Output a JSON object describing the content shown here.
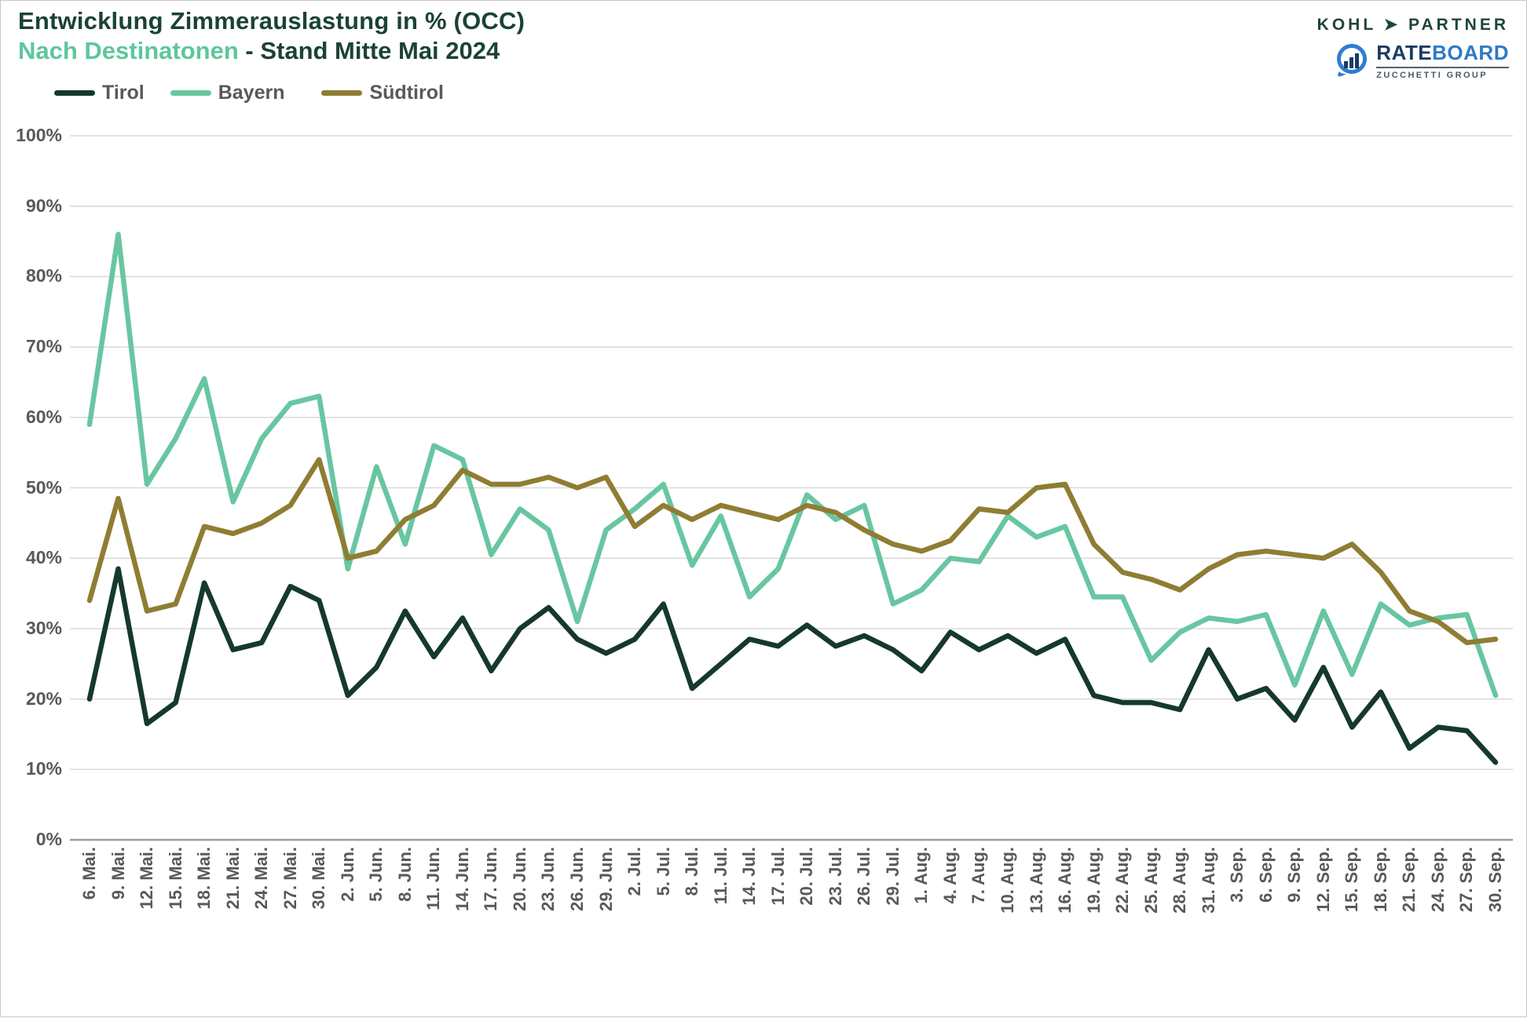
{
  "header": {
    "title": "Entwicklung Zimmerauslastung in % (OCC)",
    "subtitle_highlight": "Nach Destinatonen",
    "subtitle_rest": " - Stand Mitte Mai 2024"
  },
  "branding": {
    "kohl_partner": "KOHL ➤ PARTNER",
    "rateboard_rate": "RATE",
    "rateboard_board": "BOARD",
    "zucchetti": "ZUCCHETTI GROUP"
  },
  "colors": {
    "title": "#1b4237",
    "subtitle_highlight": "#5ec69c",
    "axis_text": "#595959",
    "gridline": "#d9d9d9",
    "axis_line": "#9e9e9e",
    "tirol": "#15392c",
    "bayern": "#68c6a1",
    "suedtirol": "#8f7d33"
  },
  "chart_data": {
    "type": "line",
    "title": "Entwicklung Zimmerauslastung in % (OCC)",
    "subtitle": "Nach Destinatonen - Stand Mitte Mai 2024",
    "ylim": [
      0,
      100
    ],
    "grid": true,
    "legend_position": "top-left",
    "y_tick_labels": [
      "0%",
      "10%",
      "20%",
      "30%",
      "40%",
      "50%",
      "60%",
      "70%",
      "80%",
      "90%",
      "100%"
    ],
    "x_labels": [
      "6. Mai.",
      "9. Mai.",
      "12. Mai.",
      "15. Mai.",
      "18. Mai.",
      "21. Mai.",
      "24. Mai.",
      "27. Mai.",
      "30. Mai.",
      "2. Jun.",
      "5. Jun.",
      "8. Jun.",
      "11. Jun.",
      "14. Jun.",
      "17. Jun.",
      "20. Jun.",
      "23. Jun.",
      "26. Jun.",
      "29. Jun.",
      "2. Jul.",
      "5. Jul.",
      "8. Jul.",
      "11. Jul.",
      "14. Jul.",
      "17. Jul.",
      "20. Jul.",
      "23. Jul.",
      "26. Jul.",
      "29. Jul.",
      "1. Aug.",
      "4. Aug.",
      "7. Aug.",
      "10. Aug.",
      "13. Aug.",
      "16. Aug.",
      "19. Aug.",
      "22. Aug.",
      "25. Aug.",
      "28. Aug.",
      "31. Aug.",
      "3. Sep.",
      "6. Sep.",
      "9. Sep.",
      "12. Sep.",
      "15. Sep.",
      "18. Sep.",
      "21. Sep.",
      "24. Sep.",
      "27. Sep.",
      "30. Sep."
    ],
    "series": [
      {
        "name": "Tirol",
        "color": "#15392c",
        "values": [
          20,
          38.5,
          16.5,
          19.5,
          36.5,
          27,
          28,
          36,
          34,
          20.5,
          24.5,
          32.5,
          26,
          31.5,
          24,
          30,
          33,
          28.5,
          26.5,
          28.5,
          33.5,
          21.5,
          25,
          28.5,
          27.5,
          30.5,
          27.5,
          29,
          27,
          24,
          29.5,
          27,
          29,
          26.5,
          28.5,
          20.5,
          19.5,
          19.5,
          18.5,
          27,
          20,
          21.5,
          17,
          24.5,
          16,
          21,
          13,
          16,
          15.5,
          11
        ]
      },
      {
        "name": "Bayern",
        "color": "#68c6a1",
        "values": [
          59,
          86,
          50.5,
          57,
          65.5,
          48,
          57,
          62,
          63,
          38.5,
          53,
          42,
          56,
          54,
          40.5,
          47,
          44,
          31,
          44,
          47,
          50.5,
          39,
          46,
          34.5,
          38.5,
          49,
          45.5,
          47.5,
          33.5,
          35.5,
          40,
          39.5,
          46,
          43,
          44.5,
          34.5,
          34.5,
          25.5,
          29.5,
          31.5,
          31,
          32,
          22,
          32.5,
          23.5,
          33.5,
          30.5,
          31.5,
          32,
          20.5
        ]
      },
      {
        "name": "Südtirol",
        "color": "#8f7d33",
        "values": [
          34,
          48.5,
          32.5,
          33.5,
          44.5,
          43.5,
          45,
          47.5,
          54,
          40,
          41,
          45.5,
          47.5,
          52.5,
          50.5,
          50.5,
          51.5,
          50,
          51.5,
          44.5,
          47.5,
          45.5,
          47.5,
          46.5,
          45.5,
          47.5,
          46.5,
          44,
          42,
          41,
          42.5,
          47,
          46.5,
          50,
          50.5,
          42,
          38,
          37,
          35.5,
          38.5,
          40.5,
          41,
          40.5,
          40,
          42,
          38,
          32.5,
          31,
          28,
          28.5
        ]
      }
    ]
  }
}
